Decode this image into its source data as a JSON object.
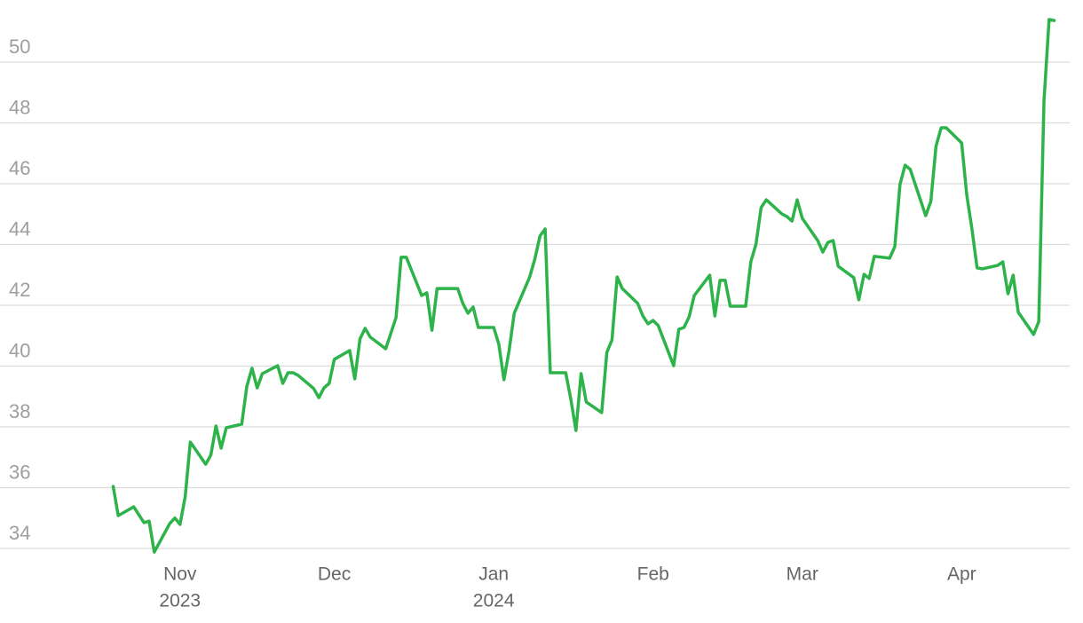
{
  "chart_data": {
    "type": "line",
    "x": [
      -13,
      -12,
      -9,
      -7,
      -6,
      -5,
      -2,
      -1,
      0,
      1,
      2,
      5,
      6,
      7,
      8,
      9,
      12,
      13,
      14,
      15,
      16,
      19,
      20,
      21,
      22,
      23,
      26,
      27,
      28,
      29,
      30,
      33,
      34,
      35,
      36,
      37,
      40,
      42,
      43,
      44,
      47,
      48,
      49,
      50,
      54,
      55,
      56,
      57,
      58,
      61,
      62,
      63,
      64,
      65,
      68,
      69,
      70,
      71,
      72,
      75,
      76,
      77,
      78,
      79,
      82,
      83,
      84,
      85,
      86,
      89,
      90,
      91,
      92,
      93,
      96,
      97,
      98,
      99,
      100,
      103,
      104,
      105,
      106,
      107,
      110,
      111,
      112,
      113,
      114,
      117,
      118,
      119,
      120,
      121,
      124,
      125,
      126,
      127,
      128,
      131,
      132,
      133,
      134,
      135,
      138,
      139,
      140,
      141,
      142,
      145,
      146,
      147,
      148,
      149,
      152,
      153,
      154,
      155,
      156,
      159,
      160,
      161,
      162,
      163,
      166,
      167,
      168,
      169,
      170
    ],
    "series": [
      {
        "color": "#2db34a",
        "values": [
          36.04,
          35.08,
          35.37,
          34.85,
          34.9,
          33.88,
          34.82,
          35.0,
          34.79,
          35.7,
          37.5,
          36.77,
          37.07,
          38.03,
          37.3,
          37.97,
          38.09,
          39.34,
          39.93,
          39.28,
          39.75,
          40.01,
          39.43,
          39.78,
          39.78,
          39.69,
          39.26,
          38.96,
          39.28,
          39.43,
          40.22,
          40.51,
          39.58,
          40.89,
          41.24,
          40.95,
          40.57,
          41.59,
          43.58,
          43.58,
          42.32,
          42.41,
          41.18,
          42.55,
          42.55,
          42.06,
          41.74,
          41.94,
          41.27,
          41.27,
          40.72,
          39.55,
          40.51,
          41.74,
          42.93,
          43.52,
          44.28,
          44.51,
          39.78,
          39.78,
          38.9,
          37.88,
          39.75,
          38.82,
          38.47,
          40.45,
          40.86,
          42.93,
          42.55,
          42.06,
          41.65,
          41.39,
          41.5,
          41.33,
          40.01,
          41.21,
          41.27,
          41.62,
          42.32,
          42.99,
          41.65,
          42.82,
          42.82,
          41.97,
          41.97,
          43.43,
          44.01,
          45.21,
          45.47,
          45.01,
          44.92,
          44.77,
          45.47,
          44.86,
          44.13,
          43.75,
          44.07,
          44.13,
          43.28,
          42.91,
          42.18,
          43.02,
          42.88,
          43.61,
          43.55,
          43.93,
          45.97,
          46.61,
          46.47,
          44.95,
          45.42,
          47.23,
          47.84,
          47.84,
          47.34,
          45.62,
          44.51,
          43.23,
          43.2,
          43.31,
          43.43,
          42.38,
          42.99,
          41.77,
          41.04,
          41.47,
          48.69,
          51.4,
          51.37
        ]
      }
    ],
    "xlim": [
      -35,
      173
    ],
    "xticks": [
      {
        "value": 0,
        "label": "Nov",
        "year": "2023"
      },
      {
        "value": 30,
        "label": "Dec"
      },
      {
        "value": 61,
        "label": "Jan",
        "year": "2024"
      },
      {
        "value": 92,
        "label": "Feb"
      },
      {
        "value": 121,
        "label": "Mar"
      },
      {
        "value": 152,
        "label": "Apr"
      }
    ],
    "ylim": [
      33.5,
      51.8
    ],
    "yticks": [
      34,
      36,
      38,
      40,
      42,
      44,
      46,
      48,
      50
    ],
    "grid": true
  }
}
